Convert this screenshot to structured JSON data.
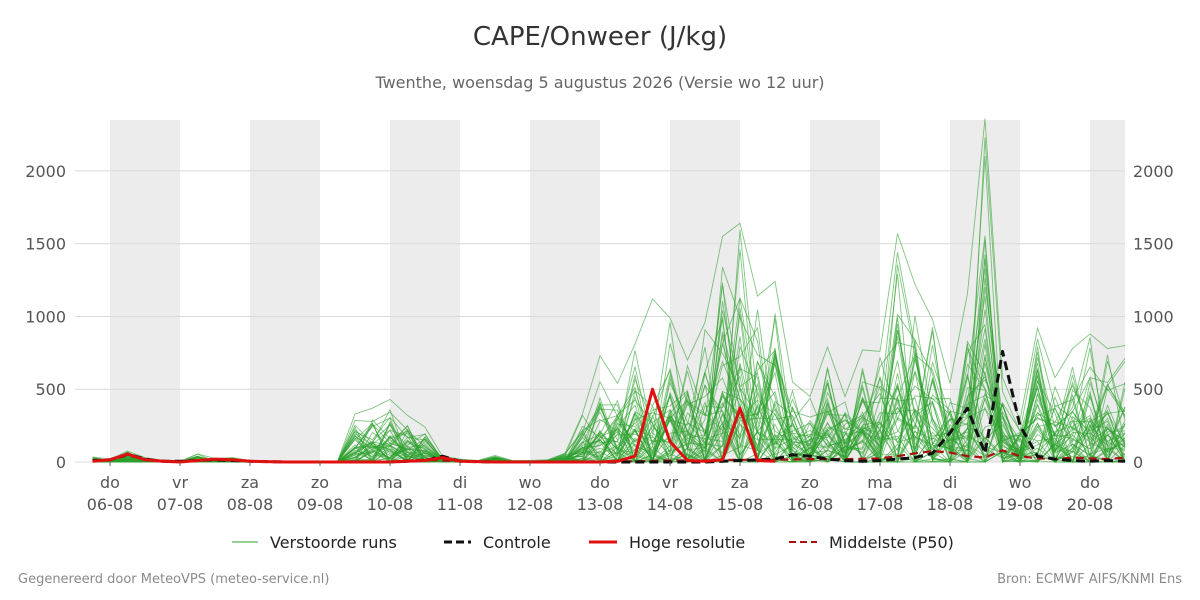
{
  "title": "CAPE/Onweer (J/kg)",
  "subtitle": "Twenthe, woensdag  5 augustus 2026 (Versie wo 12 uur)",
  "footer": {
    "left": "Gegenereerd door MeteoVPS (meteo-service.nl)",
    "right": "Bron: ECMWF AIFS/KNMI Ens"
  },
  "legend": [
    {
      "key": "members",
      "label": "Verstoorde runs"
    },
    {
      "key": "control",
      "label": "Controle"
    },
    {
      "key": "hires",
      "label": "Hoge resolutie"
    },
    {
      "key": "median",
      "label": "Middelste (P50)"
    }
  ],
  "colors": {
    "members": "#2ca02c",
    "control": "#111111",
    "hires": "#e01010",
    "median": "#aa1111",
    "night_band": "#ececec",
    "grid": "#d9d9d9"
  },
  "chart_data": {
    "type": "line",
    "title": "CAPE/Onweer (J/kg)",
    "xlabel": "",
    "ylabel": "",
    "ylim": [
      0,
      2350
    ],
    "yticks": [
      0,
      500,
      1000,
      1500,
      2000
    ],
    "grid": true,
    "legend_position": "bottom",
    "x_range_days": [
      5.5,
      20.5
    ],
    "x_ticks": [
      {
        "day": 6,
        "weekday": "do",
        "date": "06-08"
      },
      {
        "day": 7,
        "weekday": "vr",
        "date": "07-08"
      },
      {
        "day": 8,
        "weekday": "za",
        "date": "08-08"
      },
      {
        "day": 9,
        "weekday": "zo",
        "date": "09-08"
      },
      {
        "day": 10,
        "weekday": "ma",
        "date": "10-08"
      },
      {
        "day": 11,
        "weekday": "di",
        "date": "11-08"
      },
      {
        "day": 12,
        "weekday": "wo",
        "date": "12-08"
      },
      {
        "day": 13,
        "weekday": "do",
        "date": "13-08"
      },
      {
        "day": 14,
        "weekday": "vr",
        "date": "14-08"
      },
      {
        "day": 15,
        "weekday": "za",
        "date": "15-08"
      },
      {
        "day": 16,
        "weekday": "zo",
        "date": "16-08"
      },
      {
        "day": 17,
        "weekday": "ma",
        "date": "17-08"
      },
      {
        "day": 18,
        "weekday": "di",
        "date": "18-08"
      },
      {
        "day": 19,
        "weekday": "wo",
        "date": "19-08"
      },
      {
        "day": 20,
        "weekday": "do",
        "date": "20-08"
      }
    ],
    "night_bands_days": [
      [
        6,
        7
      ],
      [
        8,
        9
      ],
      [
        10,
        11
      ],
      [
        12,
        13
      ],
      [
        14,
        15
      ],
      [
        16,
        17
      ],
      [
        18,
        19
      ],
      [
        20,
        20.5
      ]
    ],
    "series": [
      {
        "name": "Controle",
        "x": [
          5.75,
          6.0,
          6.25,
          6.5,
          6.75,
          7.0,
          7.25,
          7.5,
          7.75,
          8.0,
          8.5,
          9.0,
          9.5,
          10.0,
          10.25,
          10.5,
          10.75,
          11.0,
          11.5,
          12.0,
          12.5,
          13.0,
          13.5,
          14.0,
          14.25,
          14.5,
          14.75,
          15.0,
          15.25,
          15.5,
          15.75,
          16.0,
          16.25,
          16.5,
          16.75,
          17.0,
          17.25,
          17.5,
          17.75,
          18.0,
          18.25,
          18.5,
          18.75,
          19.0,
          19.25,
          19.5,
          19.75,
          20.0,
          20.25,
          20.5
        ],
        "y": [
          10,
          15,
          55,
          20,
          5,
          5,
          10,
          15,
          10,
          5,
          0,
          0,
          0,
          0,
          5,
          10,
          40,
          5,
          0,
          0,
          0,
          0,
          0,
          0,
          0,
          0,
          5,
          10,
          15,
          20,
          50,
          40,
          20,
          10,
          5,
          10,
          20,
          30,
          60,
          200,
          370,
          60,
          760,
          250,
          40,
          20,
          10,
          5,
          10,
          5
        ]
      },
      {
        "name": "Hoge resolutie",
        "x": [
          5.75,
          6.0,
          6.25,
          6.5,
          6.75,
          7.0,
          7.25,
          7.5,
          7.75,
          8.0,
          8.5,
          9.0,
          9.5,
          10.0,
          10.25,
          10.5,
          10.75,
          11.0,
          11.5,
          12.0,
          12.5,
          13.0,
          13.25,
          13.5,
          13.75,
          14.0,
          14.25,
          14.5,
          14.75,
          15.0,
          15.25,
          15.5
        ],
        "y": [
          5,
          15,
          55,
          15,
          5,
          0,
          10,
          20,
          15,
          5,
          0,
          0,
          0,
          0,
          5,
          10,
          30,
          5,
          0,
          0,
          0,
          0,
          5,
          40,
          500,
          140,
          10,
          5,
          15,
          370,
          10,
          5
        ]
      },
      {
        "name": "Middelste (P50)",
        "x": [
          5.75,
          6.0,
          6.25,
          6.5,
          6.75,
          7.0,
          7.25,
          7.5,
          7.75,
          8.0,
          8.5,
          9.0,
          9.5,
          10.0,
          10.5,
          11.0,
          11.5,
          12.0,
          12.5,
          13.0,
          13.5,
          14.0,
          14.5,
          15.0,
          15.5,
          16.0,
          16.5,
          17.0,
          17.25,
          17.5,
          17.75,
          18.0,
          18.25,
          18.5,
          18.75,
          19.0,
          19.25,
          19.5,
          19.75,
          20.0,
          20.25,
          20.5
        ],
        "y": [
          10,
          15,
          45,
          20,
          8,
          5,
          12,
          15,
          10,
          5,
          0,
          0,
          0,
          3,
          15,
          5,
          0,
          0,
          0,
          3,
          5,
          10,
          10,
          15,
          15,
          20,
          20,
          25,
          40,
          60,
          75,
          65,
          40,
          30,
          80,
          40,
          25,
          20,
          30,
          25,
          20,
          30
        ]
      }
    ],
    "ensemble_members": {
      "name": "Verstoorde runs",
      "count": 50,
      "x": [
        5.75,
        6.0,
        6.25,
        6.5,
        6.75,
        7.0,
        7.25,
        7.5,
        7.75,
        8.0,
        8.25,
        8.5,
        8.75,
        9.0,
        9.25,
        9.5,
        9.75,
        10.0,
        10.25,
        10.5,
        10.75,
        11.0,
        11.25,
        11.5,
        11.75,
        12.0,
        12.25,
        12.5,
        12.75,
        13.0,
        13.25,
        13.5,
        13.75,
        14.0,
        14.25,
        14.5,
        14.75,
        15.0,
        15.25,
        15.5,
        15.75,
        16.0,
        16.25,
        16.5,
        16.75,
        17.0,
        17.25,
        17.5,
        17.75,
        18.0,
        18.25,
        18.5,
        18.75,
        19.0,
        19.25,
        19.5,
        19.75,
        20.0,
        20.25,
        20.5
      ],
      "envelope_max": [
        35,
        20,
        75,
        30,
        10,
        5,
        55,
        25,
        30,
        10,
        5,
        5,
        5,
        5,
        5,
        330,
        370,
        430,
        320,
        240,
        40,
        20,
        10,
        45,
        10,
        10,
        15,
        60,
        330,
        730,
        540,
        810,
        1120,
        990,
        700,
        960,
        1550,
        1640,
        1140,
        1240,
        550,
        450,
        790,
        450,
        770,
        760,
        1570,
        1220,
        980,
        540,
        1160,
        2360,
        580,
        290,
        920,
        580,
        780,
        880,
        780,
        800
      ],
      "pattern": [
        0.7,
        0.55,
        0.4,
        0.28,
        0.2,
        0.14,
        0.1,
        0.07,
        0.05,
        0.04,
        0.03,
        0.02
      ]
    }
  }
}
